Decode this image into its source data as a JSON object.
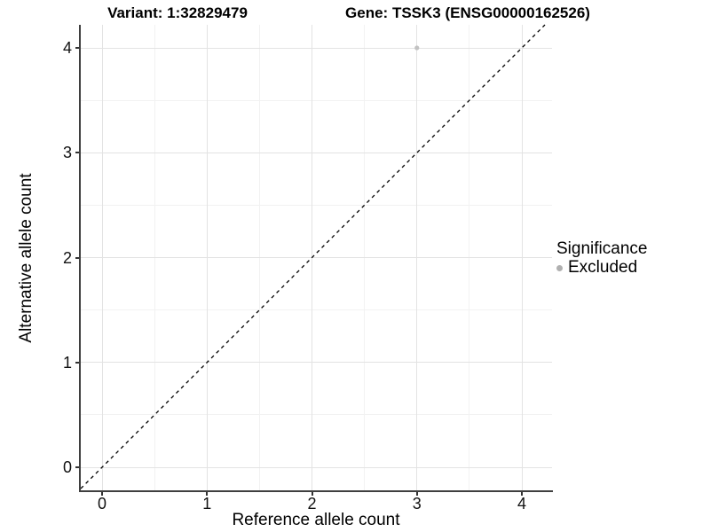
{
  "header": {
    "variant_title": "Variant: 1:32829479",
    "gene_title": "Gene: TSSK3 (ENSG00000162526)"
  },
  "axes": {
    "x_label": "Reference allele count",
    "y_label": "Alternative allele count"
  },
  "legend": {
    "title": "Significance",
    "items": [
      {
        "label": "Excluded",
        "color": "#b0b0b0"
      }
    ]
  },
  "colors": {
    "background": "#ffffff",
    "grid_major": "#e3e3e3",
    "grid_minor": "#f2f2f2",
    "axis_line": "#3f3f3f",
    "tick_mark": "#333333",
    "text": "#000000",
    "point_excluded": "#c2c2c2",
    "reference_line": "#000000"
  },
  "chart_data": {
    "type": "scatter",
    "title_left": "Variant: 1:32829479",
    "title_right": "Gene: TSSK3 (ENSG00000162526)",
    "xlabel": "Reference allele count",
    "ylabel": "Alternative allele count",
    "xlim": [
      -0.2,
      4.3
    ],
    "ylim": [
      -0.23,
      4.2
    ],
    "x_ticks": [
      0,
      1,
      2,
      3,
      4
    ],
    "y_ticks": [
      0,
      1,
      2,
      3,
      4
    ],
    "x_tick_labels": [
      "0",
      "1",
      "2",
      "3",
      "4"
    ],
    "y_tick_labels": [
      "0",
      "1",
      "2",
      "3",
      "4"
    ],
    "minor_grid_positions": [
      0.5,
      1.5,
      2.5,
      3.5
    ],
    "grid": true,
    "legend_position": "right",
    "series": [
      {
        "name": "Excluded",
        "type": "scatter",
        "color": "#c2c2c2",
        "points": [
          [
            3,
            4
          ]
        ]
      }
    ],
    "reference_line": {
      "equation": "y = x",
      "style": "dashed",
      "color": "#000000",
      "from": [
        0,
        0
      ],
      "to": [
        4,
        4
      ]
    }
  }
}
